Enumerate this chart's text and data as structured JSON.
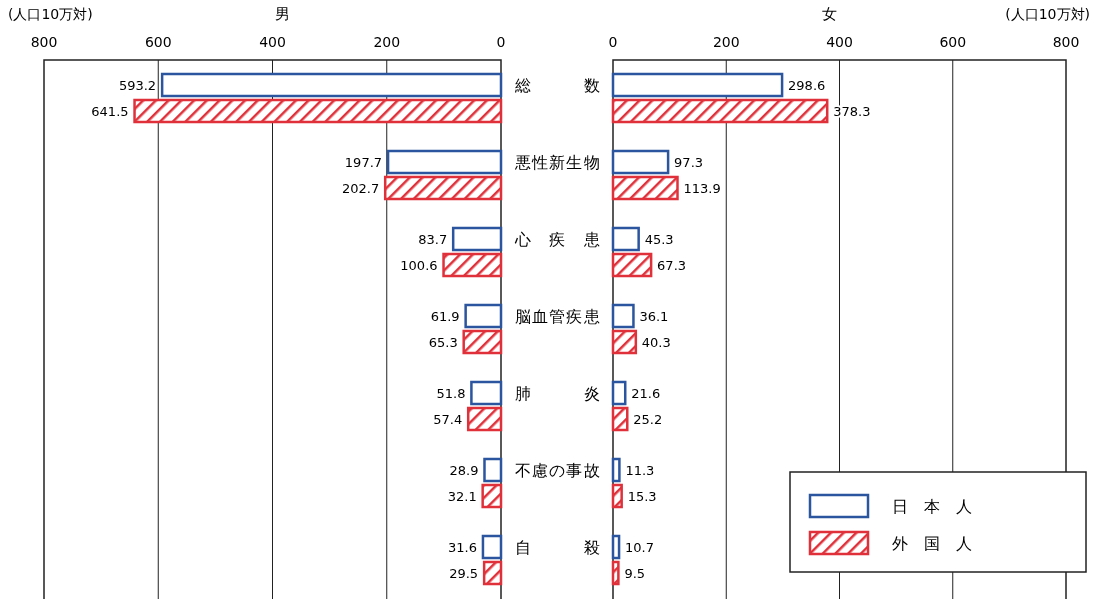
{
  "chart_data": [
    {
      "type": "bar",
      "orientation": "horizontal",
      "title": "男",
      "xlabel": "(人口10万対)",
      "categories": [
        "総数",
        "悪性新生物",
        "心疾患",
        "脳血管疾患",
        "肺炎",
        "不慮の事故",
        "自殺"
      ],
      "xlim": [
        800,
        0
      ],
      "xticks": [
        800,
        600,
        400,
        200,
        0
      ],
      "grid": "x",
      "data_labels": true,
      "legend": false,
      "series": [
        {
          "color": "#2b559e",
          "values": [
            593.2,
            197.7,
            83.7,
            61.9,
            51.8,
            28.9,
            31.6
          ]
        },
        {
          "color": "#e0313a",
          "values": [
            641.5,
            202.7,
            100.6,
            65.3,
            57.4,
            32.1,
            29.5
          ]
        }
      ]
    },
    {
      "type": "bar",
      "orientation": "horizontal",
      "title": "女",
      "xlabel": "(人口10万対)",
      "categories": [
        null,
        null,
        null,
        null,
        null,
        null,
        null
      ],
      "xlim": [
        0,
        800
      ],
      "xticks": [
        0,
        200,
        400,
        600,
        800
      ],
      "grid": "x",
      "data_labels": true,
      "legend": "bottom right",
      "tick_labels": "x",
      "series": [
        {
          "name": "日本人",
          "color": "#2b559e",
          "values": [
            298.6,
            97.3,
            45.3,
            36.1,
            21.6,
            11.3,
            10.7
          ]
        },
        {
          "name": "外国人",
          "color": "#e0313a",
          "values": [
            378.3,
            113.9,
            67.3,
            40.3,
            25.2,
            15.3,
            9.5
          ]
        }
      ]
    }
  ]
}
